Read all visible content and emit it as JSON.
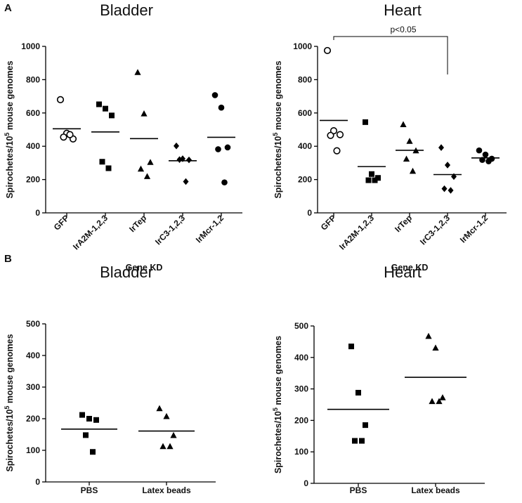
{
  "panels": [
    {
      "letter": "A"
    },
    {
      "letter": "B"
    }
  ],
  "chart_data": [
    {
      "panel": "A",
      "type": "scatter",
      "title": "Bladder",
      "xlabel": "Gene KD",
      "ylabel": "Spirochetes/10",
      "ylabel_sup": "5",
      "ylabel_rest": " mouse genomes",
      "ylim": [
        0,
        1000
      ],
      "yticks": [
        0,
        200,
        400,
        600,
        800,
        1000
      ],
      "categories": [
        "GFP",
        "IrA2M-1,2,3",
        "IrTep",
        "IrC3-1,2,3",
        "IrMcr-1,2"
      ],
      "markers": [
        "circle-open",
        "square",
        "triangle",
        "diamond",
        "circle"
      ],
      "points": [
        [
          680,
          478,
          444,
          455,
          470
        ],
        [
          652,
          626,
          585,
          307,
          268
        ],
        [
          843,
          595,
          303,
          263,
          218
        ],
        [
          402,
          325,
          318,
          320,
          188
        ],
        [
          707,
          632,
          393,
          382,
          183
        ]
      ],
      "means": [
        505,
        486,
        446,
        313,
        454
      ]
    },
    {
      "panel": "A",
      "type": "scatter",
      "title": "Heart",
      "xlabel": "Gene KD",
      "ylabel": "Spirochetes/10",
      "ylabel_sup": "5",
      "ylabel_rest": " mouse genomes",
      "ylim": [
        0,
        1000
      ],
      "yticks": [
        0,
        200,
        400,
        600,
        800,
        1000
      ],
      "categories": [
        "GFP",
        "IrA2M-1,2,3",
        "IrTep",
        "IrC3-1,2,3",
        "IrMcr-1,2"
      ],
      "markers": [
        "circle-open",
        "square",
        "triangle",
        "diamond",
        "circle"
      ],
      "points": [
        [
          975,
          493,
          470,
          465,
          373
        ],
        [
          545,
          233,
          210,
          196,
          196
        ],
        [
          530,
          430,
          373,
          323,
          250
        ],
        [
          392,
          287,
          218,
          145,
          135
        ],
        [
          375,
          350,
          325,
          318,
          310
        ]
      ],
      "means": [
        555,
        278,
        376,
        230,
        330
      ],
      "significance": {
        "label": "p<0.05",
        "from": "GFP",
        "to": "IrC3-1,2,3"
      }
    },
    {
      "panel": "B",
      "type": "scatter",
      "title": "Bladder",
      "xlabel": "",
      "ylabel": "Spirochetes/10",
      "ylabel_sup": "5",
      "ylabel_rest": " mouse genomes",
      "ylim": [
        0,
        500
      ],
      "yticks": [
        0,
        100,
        200,
        300,
        400,
        500
      ],
      "categories": [
        "PBS",
        "Latex beads"
      ],
      "markers": [
        "square",
        "triangle"
      ],
      "points": [
        [
          212,
          200,
          196,
          148,
          95
        ],
        [
          232,
          207,
          147,
          112,
          112
        ]
      ],
      "means": [
        167,
        161
      ]
    },
    {
      "panel": "B",
      "type": "scatter",
      "title": "Heart",
      "xlabel": "",
      "ylabel": "Spirochetes/10",
      "ylabel_sup": "5",
      "ylabel_rest": " mouse genomes",
      "ylim": [
        0,
        500
      ],
      "yticks": [
        0,
        100,
        200,
        300,
        400,
        500
      ],
      "categories": [
        "PBS",
        "Latex beads"
      ],
      "markers": [
        "square",
        "triangle"
      ],
      "points": [
        [
          435,
          288,
          185,
          135,
          135
        ],
        [
          467,
          430,
          272,
          260,
          260
        ]
      ],
      "means": [
        235,
        337
      ]
    }
  ]
}
